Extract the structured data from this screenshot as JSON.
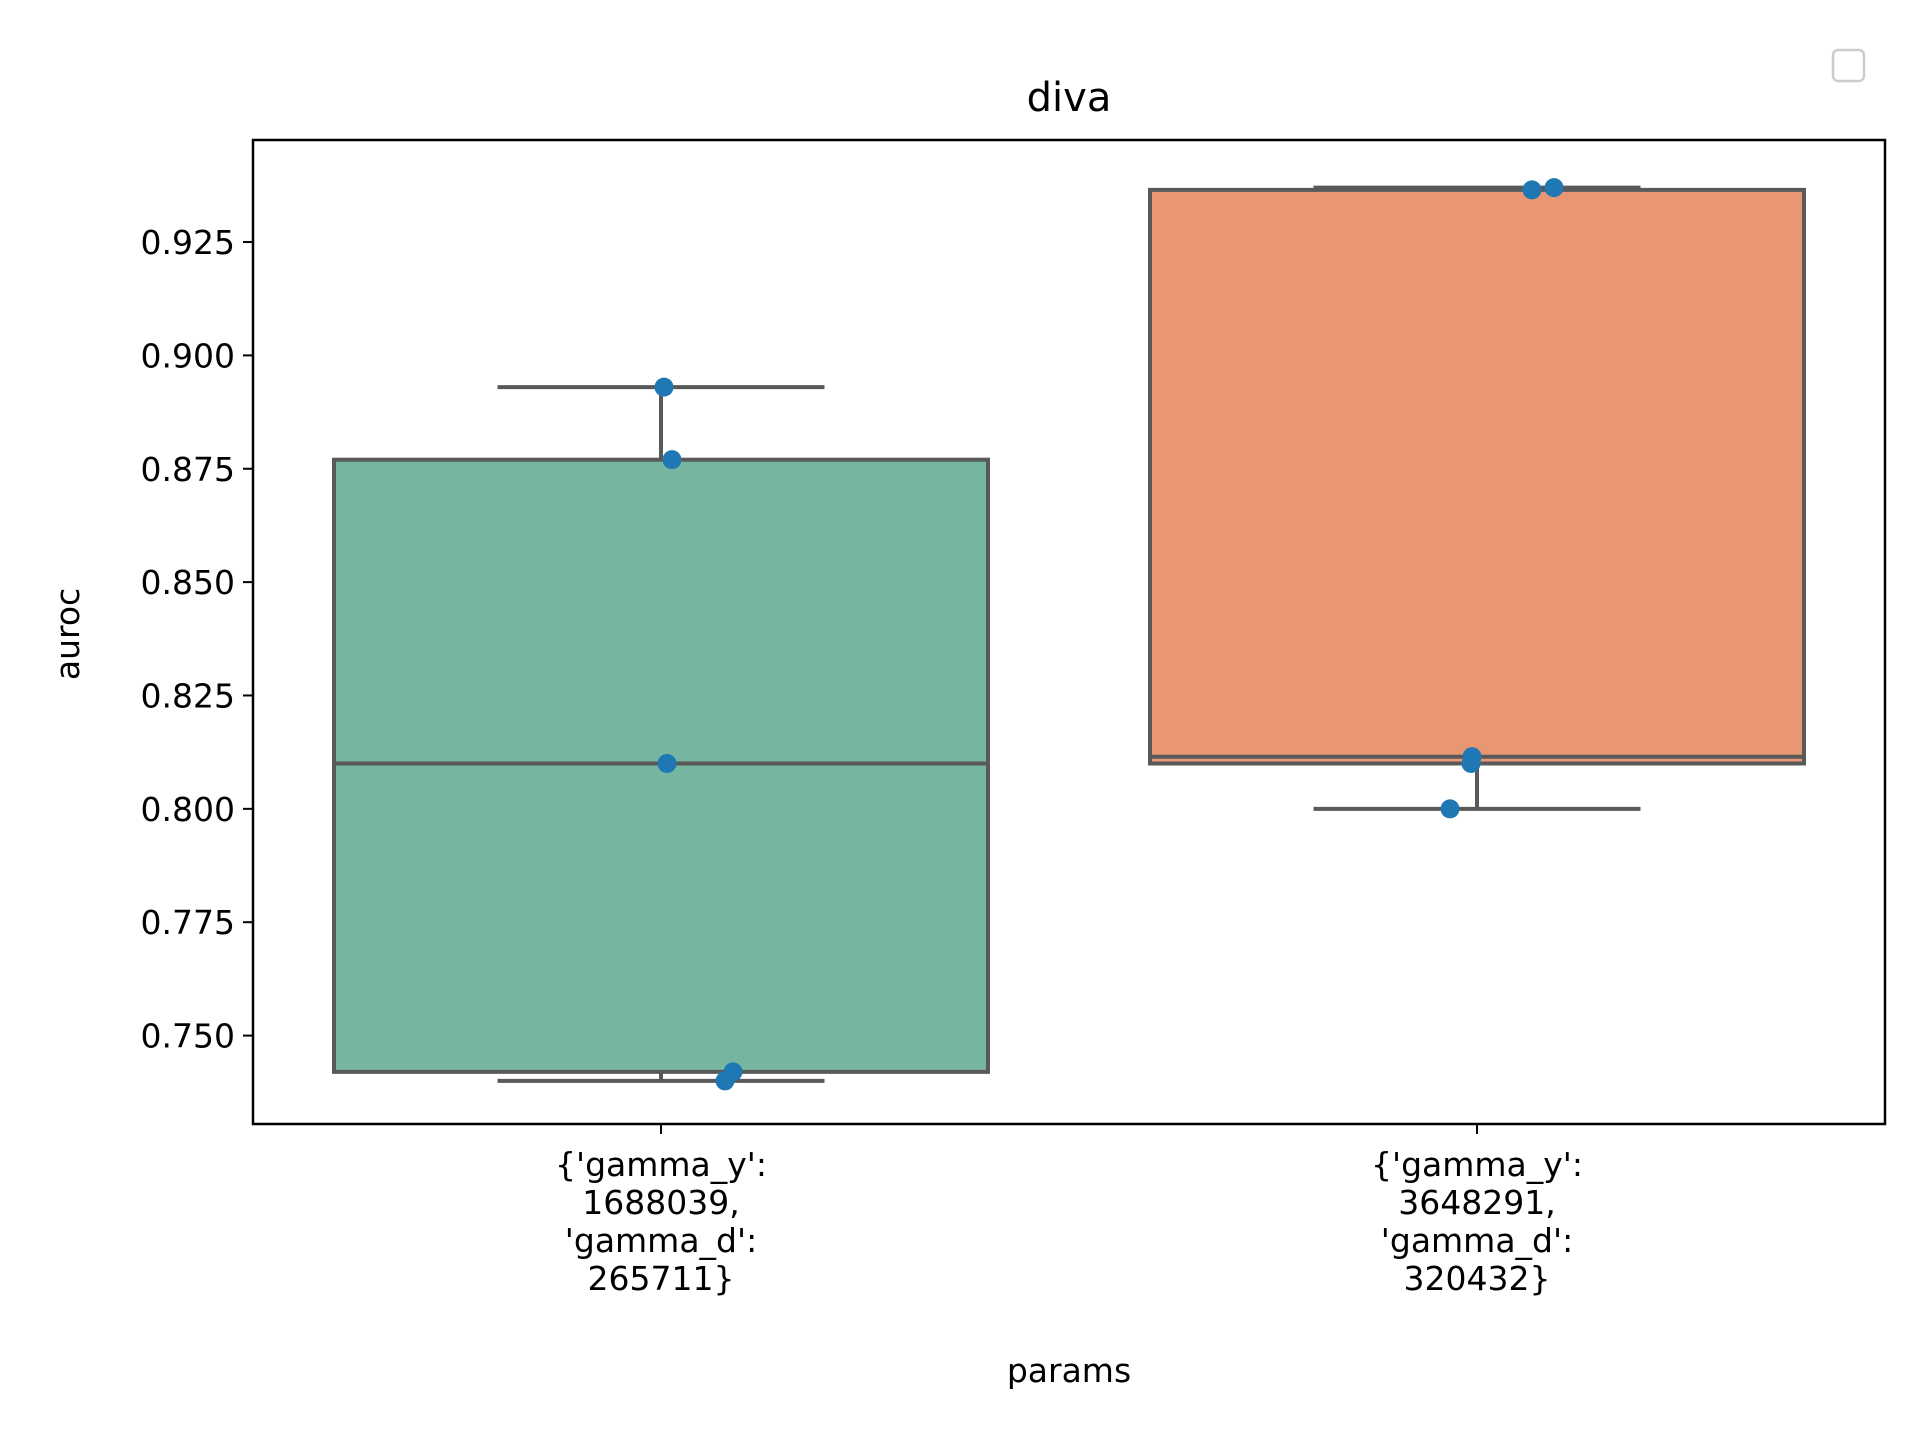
{
  "chart_data": {
    "type": "box",
    "title": "diva",
    "xlabel": "params",
    "ylabel": "auroc",
    "ylim": [
      0.7305,
      0.9475
    ],
    "yticks": [
      "0.750",
      "0.775",
      "0.800",
      "0.825",
      "0.850",
      "0.875",
      "0.900",
      "0.925"
    ],
    "legend": "top-right (empty)",
    "categories": [
      {
        "label_lines": [
          "{'gamma_y':",
          "1688039,",
          "'gamma_d':",
          "265711}"
        ],
        "color": "#76b6a0",
        "whisker_low": 0.74,
        "q1": 0.742,
        "median": 0.81,
        "q3": 0.877,
        "whisker_high": 0.893,
        "points": [
          0.893,
          0.877,
          0.81,
          0.742,
          0.74
        ]
      },
      {
        "label_lines": [
          "{'gamma_y':",
          "3648291,",
          "'gamma_d':",
          "320432}"
        ],
        "color": "#e89674",
        "whisker_low": 0.8,
        "q1": 0.81,
        "median": 0.8115,
        "q3": 0.9365,
        "whisker_high": 0.937,
        "points": [
          0.937,
          0.9365,
          0.8115,
          0.81,
          0.8
        ]
      }
    ],
    "point_color": "#1f77b4",
    "box_edge_color": "#595959"
  }
}
